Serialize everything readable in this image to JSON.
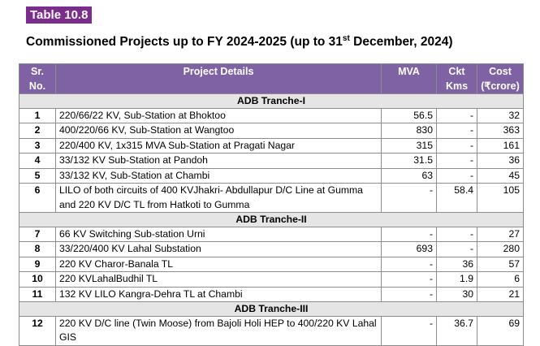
{
  "table_label": "Table 10.8",
  "title": {
    "prefix": "Commissioned Projects up to FY 2024-2025 (up to 31",
    "superscript": "st",
    "suffix": " December, 2024)"
  },
  "headers": {
    "sr_line1": "Sr.",
    "sr_line2": "No.",
    "project": "Project Details",
    "mva": "MVA",
    "ckt_line1": "Ckt",
    "ckt_line2": "Kms",
    "cost_line1": "Cost",
    "cost_line2": "(₹crore)"
  },
  "sections": [
    {
      "name": "ADB Tranche-I",
      "rows": [
        {
          "sr": "1",
          "details": "220/66/22 KV, Sub-Station at Bhoktoo",
          "mva": "56.5",
          "ckt": "-",
          "cost": "32"
        },
        {
          "sr": "2",
          "details": "400/220/66 KV, Sub-Station at Wangtoo",
          "mva": "830",
          "ckt": "-",
          "cost": "363"
        },
        {
          "sr": "3",
          "details": "220/400 KV, 1x315 MVA Sub-Station at Pragati Nagar",
          "mva": "315",
          "ckt": "-",
          "cost": "161"
        },
        {
          "sr": "4",
          "details": "33/132 KV Sub-Station at Pandoh",
          "mva": "31.5",
          "ckt": "-",
          "cost": "36"
        },
        {
          "sr": "5",
          "details": "33/132 KV, Sub-Station at Chambi",
          "mva": "63",
          "ckt": "-",
          "cost": "45"
        },
        {
          "sr": "6",
          "details": "LILO of both circuits of 400 KVJhakri- Abdullapur D/C Line at Gumma and 220 KV D/C TL from Hatkoti to Gumma",
          "mva": "-",
          "ckt": "58.4",
          "cost": "105"
        }
      ]
    },
    {
      "name": "ADB Tranche-II",
      "rows": [
        {
          "sr": "7",
          "details": "66 KV Switching Sub-station Urni",
          "mva": "-",
          "ckt": "-",
          "cost": "27"
        },
        {
          "sr": "8",
          "details": "33/220/400 KV Lahal Substation",
          "mva": "693",
          "ckt": "-",
          "cost": "280"
        },
        {
          "sr": "9",
          "details": "220 KV Charor-Banala TL",
          "mva": "-",
          "ckt": "36",
          "cost": "57"
        },
        {
          "sr": "10",
          "details": "220 KVLahalBudhil TL",
          "mva": "-",
          "ckt": "1.9",
          "cost": "6"
        },
        {
          "sr": "11",
          "details": "132 KV LILO Kangra-Dehra TL at Chambi",
          "mva": "-",
          "ckt": "30",
          "cost": "21"
        }
      ]
    },
    {
      "name": "ADB Tranche-III",
      "rows": [
        {
          "sr": "12",
          "details": "220 KV D/C line (Twin Moose) from Bajoli Holi HEP to 400/220 KV Lahal GIS",
          "mva": "-",
          "ckt": "36.7",
          "cost": "69"
        }
      ]
    }
  ]
}
